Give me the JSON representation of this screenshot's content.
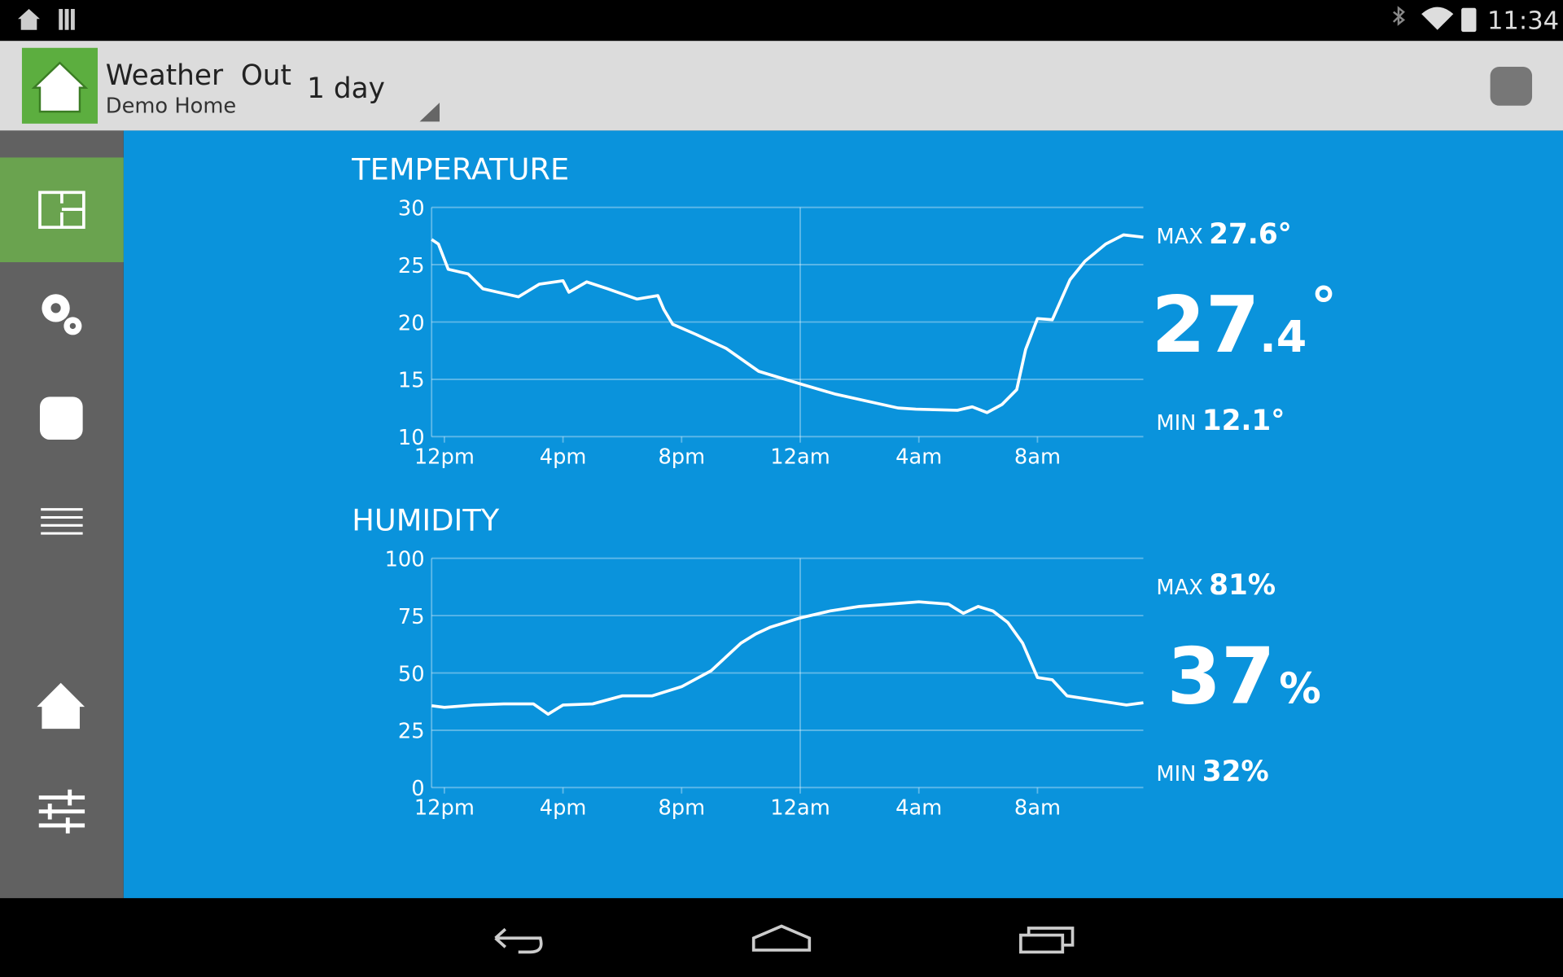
{
  "status_bar": {
    "time": "11:34"
  },
  "app_bar": {
    "title": "Weather  Out",
    "subtitle": "Demo Home",
    "range": "1 day"
  },
  "chart_data": [
    {
      "type": "line",
      "title": "TEMPERATURE",
      "color": "#ffffff",
      "x": [
        -0.43,
        -0.2,
        0.13,
        0.8,
        1.3,
        1.8,
        2.5,
        3.2,
        4,
        4.2,
        4.8,
        5.5,
        6.5,
        7.2,
        7.4,
        7.7,
        8.5,
        9.5,
        10.6,
        12,
        13.2,
        14.6,
        15.3,
        15.9,
        17.3,
        17.8,
        18.3,
        18.8,
        19.3,
        19.6,
        20,
        20.5,
        21.1,
        21.6,
        22.3,
        22.9,
        23.57
      ],
      "values": [
        27.2,
        26.8,
        24.6,
        24.2,
        22.9,
        22.6,
        22.2,
        23.3,
        23.6,
        22.6,
        23.5,
        22.9,
        22.0,
        22.3,
        21.1,
        19.8,
        18.9,
        17.7,
        15.7,
        14.6,
        13.7,
        12.9,
        12.5,
        12.4,
        12.3,
        12.6,
        12.1,
        12.8,
        14.1,
        17.6,
        20.3,
        20.2,
        23.7,
        25.3,
        26.8,
        27.6,
        27.4
      ],
      "xlim": [
        -0.43,
        23.57
      ],
      "xticks": [
        {
          "value": 0,
          "label": "12pm"
        },
        {
          "value": 4,
          "label": "4pm"
        },
        {
          "value": 8,
          "label": "8pm"
        },
        {
          "value": 12,
          "label": "12am"
        },
        {
          "value": 16,
          "label": "4am"
        },
        {
          "value": 20,
          "label": "8am"
        }
      ],
      "x_marker": 12,
      "ylim": [
        10,
        30
      ],
      "yticks": [
        10,
        15,
        20,
        25,
        30
      ],
      "grid": true,
      "summary": {
        "max_label": "MAX",
        "max": "27.6°",
        "current_whole": "27",
        "current_fraction": ".4",
        "current_unit": "°",
        "min_label": "MIN",
        "min": "12.1°"
      }
    },
    {
      "type": "line",
      "title": "HUMIDITY",
      "color": "#ffffff",
      "x": [
        -0.43,
        0,
        1,
        2,
        3,
        3.5,
        4,
        5,
        6,
        7,
        8,
        9,
        10,
        10.5,
        11,
        12,
        13,
        14,
        15,
        16,
        17,
        17.5,
        18,
        18.5,
        19,
        19.5,
        20,
        20.5,
        21,
        22,
        23,
        23.57
      ],
      "values": [
        35.7,
        35,
        36,
        36.5,
        36.5,
        32,
        36,
        36.5,
        40,
        40,
        44,
        51,
        63,
        67,
        70,
        74,
        77,
        79,
        80,
        81,
        80,
        76,
        79,
        77,
        72,
        63,
        48,
        47,
        40,
        38,
        36,
        37
      ],
      "xlim": [
        -0.43,
        23.57
      ],
      "xticks": [
        {
          "value": 0,
          "label": "12pm"
        },
        {
          "value": 4,
          "label": "4pm"
        },
        {
          "value": 8,
          "label": "8pm"
        },
        {
          "value": 12,
          "label": "12am"
        },
        {
          "value": 16,
          "label": "4am"
        },
        {
          "value": 20,
          "label": "8am"
        }
      ],
      "x_marker": 12,
      "ylim": [
        0,
        100
      ],
      "yticks": [
        0,
        25,
        50,
        75,
        100
      ],
      "grid": true,
      "summary": {
        "max_label": "MAX",
        "max": "81%",
        "current_whole": "37",
        "current_unit": "%",
        "min_label": "MIN",
        "min": "32%"
      }
    }
  ]
}
